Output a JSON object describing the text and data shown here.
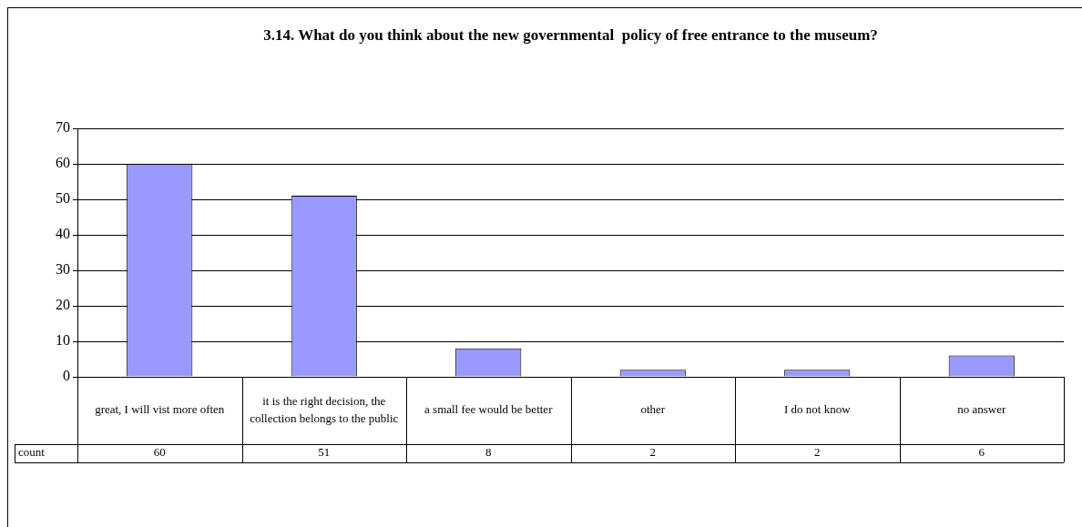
{
  "chart_data": {
    "type": "bar",
    "title": "3.14. What do you think about the new governmental  policy of free entrance to the museum?",
    "categories": [
      "great, I will vist more often",
      "it is the right decision, the collection belongs to the public",
      "a small fee would be better",
      "other",
      "I do not know",
      "no answer"
    ],
    "series": [
      {
        "name": "count",
        "color": "#9999ff",
        "values": [
          60,
          51,
          8,
          2,
          2,
          6
        ]
      }
    ],
    "ylim": [
      0,
      70
    ],
    "yticks": [
      0,
      10,
      20,
      30,
      40,
      50,
      60,
      70
    ],
    "grid": "y",
    "legend": false,
    "data_labels": true
  }
}
